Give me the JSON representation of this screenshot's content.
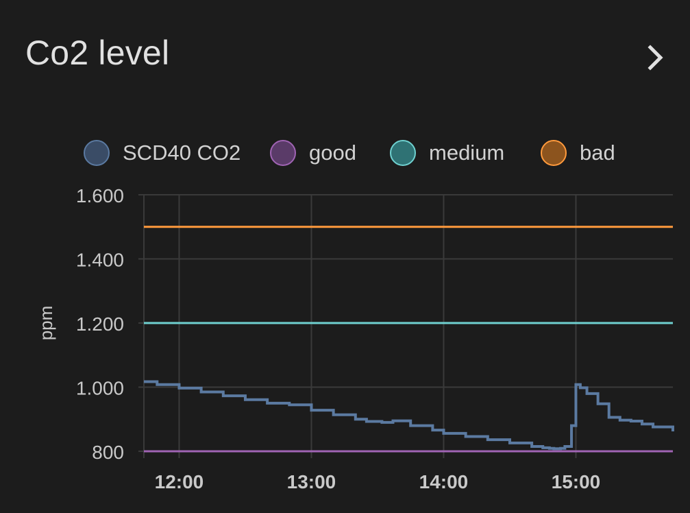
{
  "card": {
    "title": "Co2 level",
    "more_icon": "chevron-right-icon"
  },
  "legend": [
    {
      "label": "SCD40 CO2",
      "color": "#5b7aa1",
      "fill": "#3a4c66"
    },
    {
      "label": "good",
      "color": "#a064b4",
      "fill": "#5a3b68"
    },
    {
      "label": "medium",
      "color": "#6fd1d0",
      "fill": "#2f7274"
    },
    {
      "label": "bad",
      "color": "#ff9a3c",
      "fill": "#8c541e"
    }
  ],
  "chart_data": {
    "type": "line",
    "ylabel": "ppm",
    "xlabel": "",
    "ylim": [
      800,
      1600
    ],
    "y_ticks": [
      "1.600",
      "1.400",
      "1.200",
      "1.000",
      "800"
    ],
    "x_ticks": [
      "12:00",
      "13:00",
      "14:00",
      "15:00"
    ],
    "xlim": [
      "11:44",
      "15:44"
    ],
    "grid": true,
    "legend_position": "top",
    "series": [
      {
        "name": "SCD40 CO2",
        "color": "#5b7aa1",
        "step": true,
        "x": [
          "11:44",
          "11:50",
          "12:00",
          "12:10",
          "12:20",
          "12:30",
          "12:40",
          "12:50",
          "13:00",
          "13:10",
          "13:20",
          "13:25",
          "13:32",
          "13:37",
          "13:45",
          "13:55",
          "14:00",
          "14:10",
          "14:20",
          "14:30",
          "14:40",
          "14:45",
          "14:48",
          "14:50",
          "14:53",
          "14:55",
          "14:58",
          "15:00",
          "15:02",
          "15:05",
          "15:10",
          "15:15",
          "15:20",
          "15:25",
          "15:30",
          "15:35",
          "15:44"
        ],
        "y": [
          1017,
          1008,
          997,
          985,
          973,
          961,
          950,
          945,
          928,
          914,
          900,
          893,
          890,
          895,
          880,
          866,
          856,
          846,
          836,
          826,
          815,
          811,
          809,
          808,
          809,
          815,
          880,
          1008,
          998,
          980,
          948,
          906,
          897,
          894,
          885,
          876,
          862
        ]
      },
      {
        "name": "good",
        "color": "#a064b4",
        "x": [
          "11:44",
          "15:44"
        ],
        "y": [
          800,
          800
        ]
      },
      {
        "name": "medium",
        "color": "#6fd1d0",
        "x": [
          "11:44",
          "15:44"
        ],
        "y": [
          1200,
          1200
        ]
      },
      {
        "name": "bad",
        "color": "#ff9a3c",
        "x": [
          "11:44",
          "15:44"
        ],
        "y": [
          1500,
          1500
        ]
      }
    ]
  }
}
